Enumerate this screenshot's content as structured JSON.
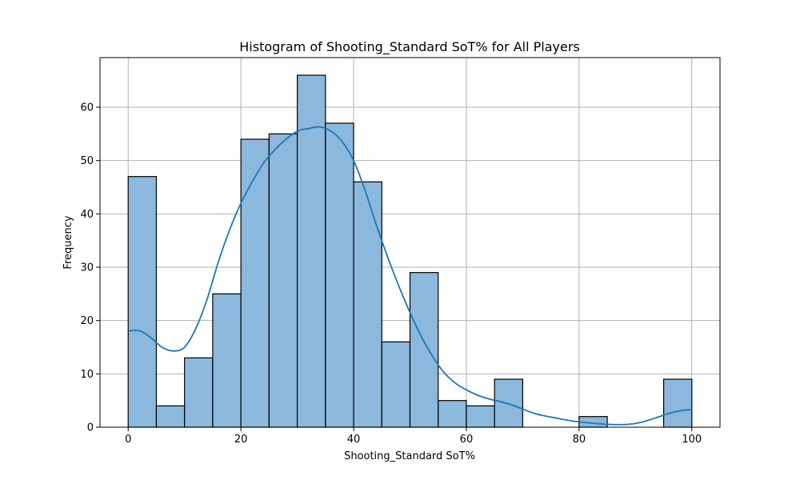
{
  "chart_data": {
    "type": "bar",
    "title": "Histogram of Shooting_Standard SoT% for All Players",
    "xlabel": "Shooting_Standard SoT%",
    "ylabel": "Frequency",
    "xlim": [
      -5,
      105
    ],
    "ylim": [
      0,
      69.3
    ],
    "x_ticks": [
      0,
      20,
      40,
      60,
      80,
      100
    ],
    "y_ticks": [
      0,
      10,
      20,
      30,
      40,
      50,
      60
    ],
    "grid": true,
    "bin_width": 5,
    "bins": [
      {
        "start": 0,
        "end": 5,
        "value": 47
      },
      {
        "start": 5,
        "end": 10,
        "value": 4
      },
      {
        "start": 10,
        "end": 15,
        "value": 13
      },
      {
        "start": 15,
        "end": 20,
        "value": 25
      },
      {
        "start": 20,
        "end": 25,
        "value": 54
      },
      {
        "start": 25,
        "end": 30,
        "value": 55
      },
      {
        "start": 30,
        "end": 35,
        "value": 66
      },
      {
        "start": 35,
        "end": 40,
        "value": 57
      },
      {
        "start": 40,
        "end": 45,
        "value": 46
      },
      {
        "start": 45,
        "end": 50,
        "value": 16
      },
      {
        "start": 50,
        "end": 55,
        "value": 29
      },
      {
        "start": 55,
        "end": 60,
        "value": 5
      },
      {
        "start": 60,
        "end": 65,
        "value": 4
      },
      {
        "start": 65,
        "end": 70,
        "value": 9
      },
      {
        "start": 70,
        "end": 75,
        "value": 0
      },
      {
        "start": 75,
        "end": 80,
        "value": 0
      },
      {
        "start": 80,
        "end": 85,
        "value": 2
      },
      {
        "start": 85,
        "end": 90,
        "value": 0
      },
      {
        "start": 90,
        "end": 95,
        "value": 0
      },
      {
        "start": 95,
        "end": 100,
        "value": 9
      }
    ],
    "kde": {
      "x": [
        0,
        2,
        4,
        6,
        8,
        10,
        12,
        14,
        16,
        18,
        20,
        22,
        24,
        26,
        28,
        30,
        32,
        34,
        36,
        38,
        40,
        42,
        44,
        46,
        48,
        50,
        52,
        54,
        56,
        58,
        60,
        62,
        64,
        66,
        68,
        70,
        72,
        74,
        76,
        78,
        80,
        82,
        84,
        86,
        88,
        90,
        92,
        94,
        96,
        98,
        100
      ],
      "y": [
        18,
        18.1,
        16.8,
        15,
        14.3,
        15,
        18.5,
        24,
        31,
        37,
        42,
        46,
        49.5,
        52,
        54,
        55.5,
        56,
        56.3,
        55.5,
        53.5,
        50,
        44.5,
        38,
        32,
        26.5,
        21.5,
        17,
        13.3,
        10.3,
        8.3,
        7,
        6,
        5.3,
        4.8,
        4.2,
        3.4,
        2.6,
        2.1,
        1.7,
        1.3,
        1.0,
        0.8,
        0.6,
        0.5,
        0.5,
        0.7,
        1.2,
        1.9,
        2.6,
        3.1,
        3.3
      ]
    },
    "bar_color": "#8bb8dc",
    "bar_edge_color": "#000000",
    "kde_color": "#1f77b4",
    "grid_color": "#b0b0b0"
  }
}
